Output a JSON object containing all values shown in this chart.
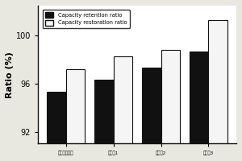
{
  "groups": [
    "比初始\n电解液",
    "电\n解液1",
    "电\n解液2",
    "电\n解液3"
  ],
  "x_labels": [
    "比初始电解液",
    "电解液1",
    "电解液2",
    "电解液3"
  ],
  "retention": [
    95.3,
    96.3,
    97.3,
    98.7
  ],
  "restoration": [
    97.2,
    98.3,
    98.8,
    101.3
  ],
  "bar_width": 0.4,
  "ylim": [
    91.0,
    102.5
  ],
  "yticks": [
    92,
    96,
    100
  ],
  "ylabel": "Ratio (%)",
  "legend_labels": [
    "Capacity retention ratio",
    "Capacity restoration ratio"
  ],
  "retention_color": "#111111",
  "restoration_color": "#f5f5f5",
  "edge_color": "#111111",
  "fig_facecolor": "#e8e8e0",
  "ax_facecolor": "#ffffff",
  "title": ""
}
